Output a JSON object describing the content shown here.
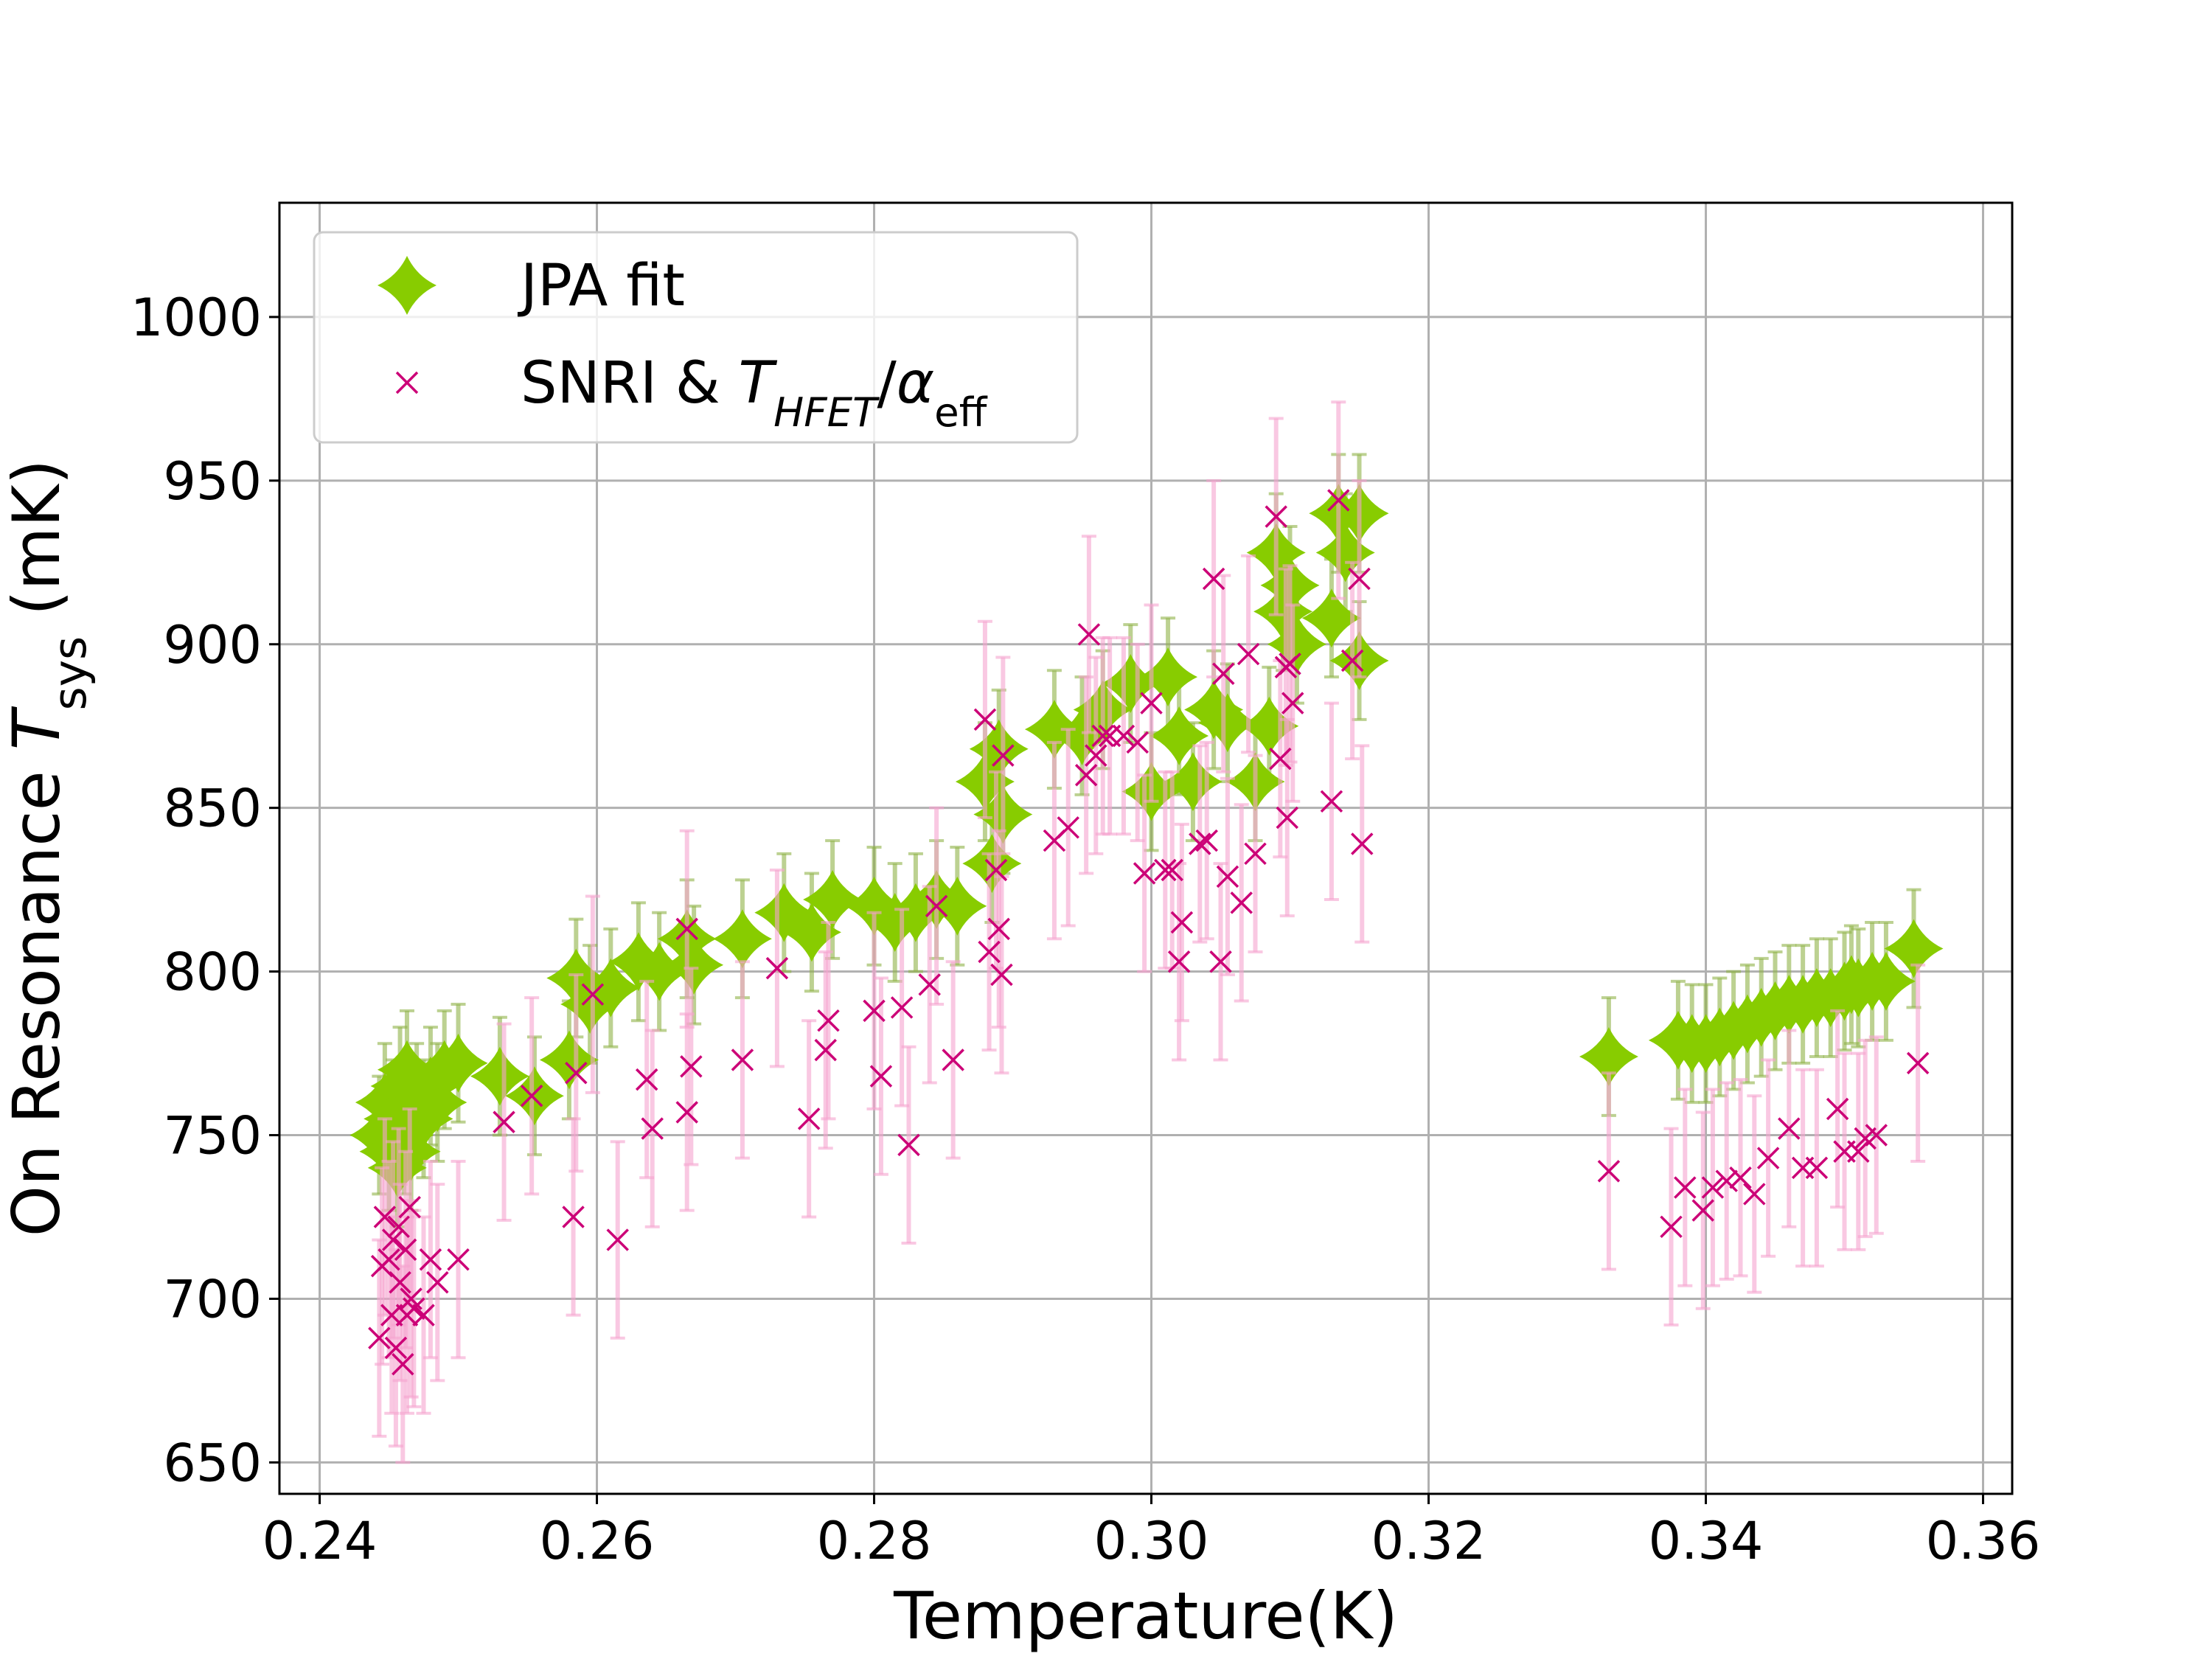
{
  "chart_data": {
    "type": "scatter",
    "xlabel": "Temperature(K)",
    "ylabel": "On Resonance T_sys (mK)",
    "xlim": [
      0.2371,
      0.3621
    ],
    "ylim": [
      640.4,
      1034.9
    ],
    "xticks": [
      {
        "value": 0.24,
        "label": "0.24"
      },
      {
        "value": 0.26,
        "label": "0.26"
      },
      {
        "value": 0.28,
        "label": "0.28"
      },
      {
        "value": 0.3,
        "label": "0.30"
      },
      {
        "value": 0.32,
        "label": "0.32"
      },
      {
        "value": 0.34,
        "label": "0.34"
      },
      {
        "value": 0.36,
        "label": "0.36"
      }
    ],
    "yticks": [
      650,
      700,
      750,
      800,
      850,
      900,
      950,
      1000
    ],
    "grid": true,
    "legend": "upper left",
    "series": [
      {
        "name": "JPA fit",
        "color": "#88cc00",
        "errcolor": "#8fb347",
        "marker": "star4",
        "yerr": 18,
        "x": [
          0.2443,
          0.2447,
          0.245,
          0.2453,
          0.2456,
          0.2458,
          0.2461,
          0.2463,
          0.2466,
          0.247,
          0.2475,
          0.248,
          0.2485,
          0.249,
          0.25,
          0.253,
          0.2555,
          0.258,
          0.2585,
          0.2595,
          0.261,
          0.263,
          0.2645,
          0.2665,
          0.267,
          0.2705,
          0.2735,
          0.2755,
          0.277,
          0.28,
          0.2815,
          0.283,
          0.2845,
          0.286,
          0.288,
          0.2885,
          0.289,
          0.2893,
          0.293,
          0.295,
          0.2965,
          0.2985,
          0.3,
          0.3012,
          0.302,
          0.303,
          0.3045,
          0.3055,
          0.3075,
          0.3085,
          0.309,
          0.3095,
          0.31,
          0.3105,
          0.313,
          0.3135,
          0.314,
          0.315,
          0.315,
          0.333,
          0.338,
          0.339,
          0.34,
          0.341,
          0.342,
          0.343,
          0.344,
          0.345,
          0.346,
          0.347,
          0.348,
          0.349,
          0.35,
          0.3505,
          0.351,
          0.352,
          0.353,
          0.355
        ],
        "values": [
          750,
          760,
          745,
          755,
          740,
          765,
          750,
          770,
          745,
          760,
          755,
          765,
          760,
          770,
          772,
          768,
          762,
          773,
          798,
          790,
          795,
          803,
          800,
          810,
          802,
          810,
          818,
          812,
          822,
          820,
          815,
          818,
          822,
          820,
          858,
          833,
          868,
          848,
          874,
          872,
          880,
          888,
          855,
          890,
          872,
          858,
          880,
          876,
          858,
          875,
          928,
          910,
          918,
          900,
          908,
          940,
          928,
          895,
          940,
          774,
          779,
          778,
          778,
          780,
          782,
          784,
          786,
          788,
          790,
          790,
          792,
          792,
          794,
          796,
          795,
          797,
          797,
          807
        ]
      },
      {
        "name": "SNRI & T_HFET/α_eff",
        "color": "#cc0077",
        "errcolor": "#f5a3cf",
        "marker": "x",
        "yerr": 30,
        "x": [
          0.2443,
          0.2445,
          0.2447,
          0.245,
          0.2452,
          0.2453,
          0.2455,
          0.2457,
          0.2458,
          0.246,
          0.2462,
          0.2463,
          0.2465,
          0.2466,
          0.2468,
          0.2475,
          0.248,
          0.2485,
          0.25,
          0.2533,
          0.2553,
          0.2583,
          0.2585,
          0.2597,
          0.2615,
          0.2636,
          0.264,
          0.2665,
          0.2665,
          0.2668,
          0.2705,
          0.273,
          0.2753,
          0.2765,
          0.2767,
          0.28,
          0.2805,
          0.282,
          0.2825,
          0.284,
          0.2845,
          0.2857,
          0.288,
          0.2883,
          0.2888,
          0.289,
          0.2892,
          0.2893,
          0.293,
          0.294,
          0.2953,
          0.2955,
          0.296,
          0.2965,
          0.297,
          0.298,
          0.299,
          0.2995,
          0.3,
          0.301,
          0.3015,
          0.302,
          0.3022,
          0.3035,
          0.304,
          0.3045,
          0.305,
          0.3052,
          0.3055,
          0.3065,
          0.307,
          0.3075,
          0.309,
          0.3093,
          0.3097,
          0.3098,
          0.31,
          0.3102,
          0.313,
          0.3135,
          0.3145,
          0.315,
          0.3152,
          0.333,
          0.3375,
          0.3385,
          0.3398,
          0.3405,
          0.3415,
          0.3425,
          0.3435,
          0.3445,
          0.346,
          0.347,
          0.348,
          0.3495,
          0.35,
          0.351,
          0.3515,
          0.3523,
          0.3553
        ],
        "values": [
          688,
          710,
          725,
          712,
          695,
          718,
          685,
          722,
          705,
          680,
          715,
          695,
          728,
          700,
          697,
          695,
          712,
          705,
          712,
          754,
          762,
          725,
          769,
          793,
          718,
          767,
          752,
          757,
          813,
          771,
          773,
          801,
          755,
          776,
          785,
          788,
          768,
          789,
          747,
          796,
          820,
          773,
          877,
          806,
          831,
          813,
          799,
          866,
          840,
          844,
          860,
          903,
          866,
          872,
          872,
          872,
          870,
          830,
          882,
          831,
          831,
          803,
          815,
          839,
          840,
          920,
          803,
          891,
          829,
          821,
          897,
          836,
          939,
          865,
          893,
          847,
          894,
          882,
          852,
          944,
          895,
          920,
          839,
          739,
          722,
          734,
          727,
          734,
          736,
          737,
          732,
          743,
          752,
          740,
          740,
          758,
          745,
          745,
          749,
          750,
          772
        ]
      }
    ]
  }
}
